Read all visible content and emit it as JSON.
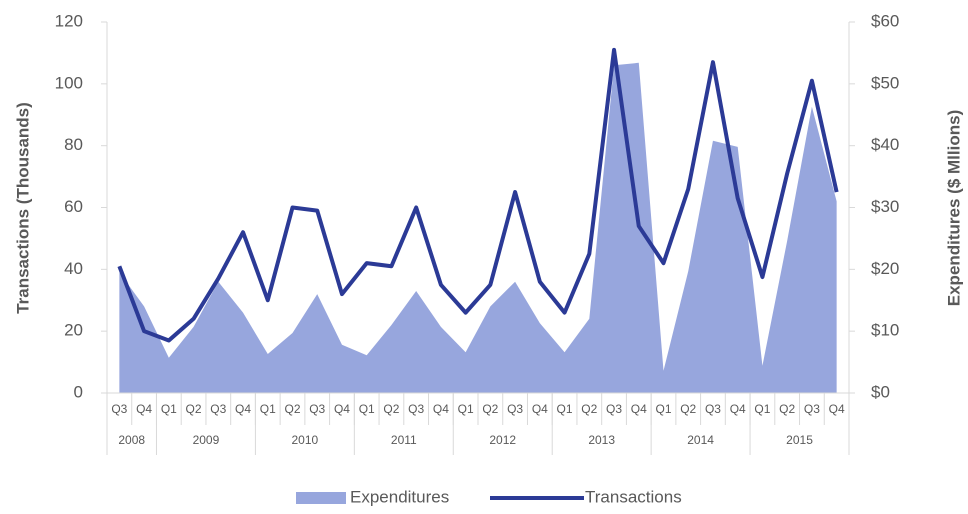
{
  "chart_data": {
    "type": "line_area",
    "categories": [
      {
        "quarter": "Q3",
        "year": "2008"
      },
      {
        "quarter": "Q4",
        "year": "2008"
      },
      {
        "quarter": "Q1",
        "year": "2009"
      },
      {
        "quarter": "Q2",
        "year": "2009"
      },
      {
        "quarter": "Q3",
        "year": "2009"
      },
      {
        "quarter": "Q4",
        "year": "2009"
      },
      {
        "quarter": "Q1",
        "year": "2010"
      },
      {
        "quarter": "Q2",
        "year": "2010"
      },
      {
        "quarter": "Q3",
        "year": "2010"
      },
      {
        "quarter": "Q4",
        "year": "2010"
      },
      {
        "quarter": "Q1",
        "year": "2011"
      },
      {
        "quarter": "Q2",
        "year": "2011"
      },
      {
        "quarter": "Q3",
        "year": "2011"
      },
      {
        "quarter": "Q4",
        "year": "2011"
      },
      {
        "quarter": "Q1",
        "year": "2012"
      },
      {
        "quarter": "Q2",
        "year": "2012"
      },
      {
        "quarter": "Q3",
        "year": "2012"
      },
      {
        "quarter": "Q4",
        "year": "2012"
      },
      {
        "quarter": "Q1",
        "year": "2013"
      },
      {
        "quarter": "Q2",
        "year": "2013"
      },
      {
        "quarter": "Q3",
        "year": "2013"
      },
      {
        "quarter": "Q4",
        "year": "2013"
      },
      {
        "quarter": "Q1",
        "year": "2014"
      },
      {
        "quarter": "Q2",
        "year": "2014"
      },
      {
        "quarter": "Q3",
        "year": "2014"
      },
      {
        "quarter": "Q4",
        "year": "2014"
      },
      {
        "quarter": "Q1",
        "year": "2015"
      },
      {
        "quarter": "Q2",
        "year": "2015"
      },
      {
        "quarter": "Q3",
        "year": "2015"
      },
      {
        "quarter": "Q4",
        "year": "2015"
      }
    ],
    "series": [
      {
        "name": "Expenditures",
        "kind": "area",
        "axis": "y2",
        "color": "#97a6dd",
        "values": [
          19.5,
          14,
          5.7,
          10.7,
          18,
          13,
          6.3,
          9.7,
          16,
          7.8,
          6.1,
          11,
          16.5,
          10.7,
          6.6,
          14,
          18,
          11.3,
          6.6,
          12,
          53,
          53.4,
          3.6,
          19.7,
          40.8,
          39.8,
          4.4,
          24.6,
          46.3,
          31
        ]
      },
      {
        "name": "Transactions",
        "kind": "line",
        "axis": "y",
        "color": "#2b3a96",
        "values": [
          41,
          20,
          17,
          24,
          37,
          52,
          30,
          60,
          59,
          32,
          42,
          41,
          60,
          35,
          26,
          35,
          65,
          36,
          26,
          45,
          111,
          54,
          42,
          66,
          107,
          63,
          37.5,
          71,
          101,
          65
        ]
      }
    ],
    "ylabel": "Transactions (Thousands)",
    "y2label": "Expenditures ($ Mllions)",
    "ylim": [
      0,
      120
    ],
    "yticks": [
      0,
      20,
      40,
      60,
      80,
      100,
      120
    ],
    "y2lim": [
      0,
      60
    ],
    "y2ticks": [
      {
        "value": 0,
        "label": "$0"
      },
      {
        "value": 10,
        "label": "$10"
      },
      {
        "value": 20,
        "label": "$20"
      },
      {
        "value": 30,
        "label": "$30"
      },
      {
        "value": 40,
        "label": "$40"
      },
      {
        "value": 50,
        "label": "$50"
      },
      {
        "value": 60,
        "label": "$60"
      }
    ],
    "legend": "bottom"
  }
}
